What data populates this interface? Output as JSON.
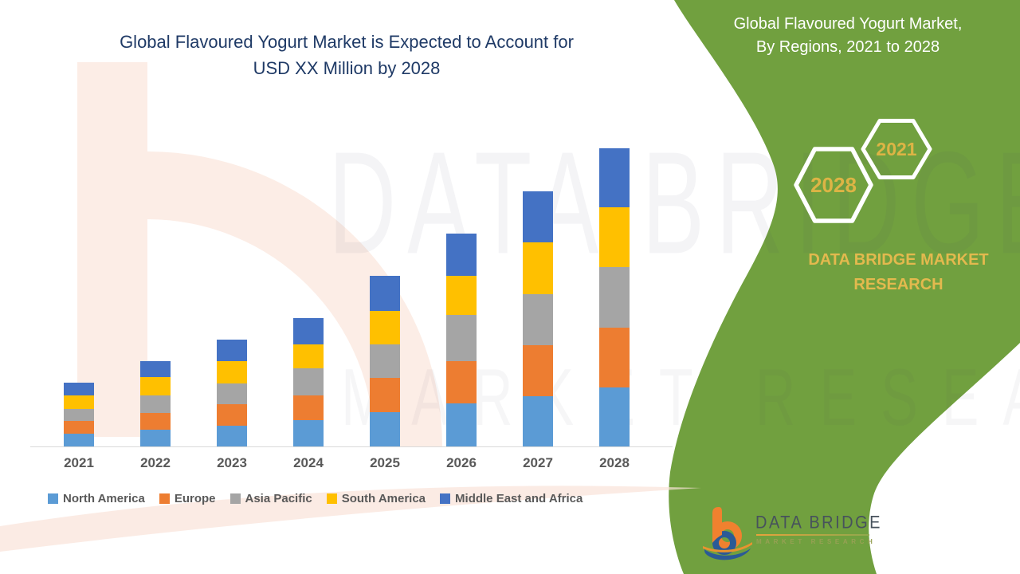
{
  "header": {
    "title_line1": "Global Flavoured Yogurt Market is Expected to Account for",
    "title_line2": "USD XX Million by 2028"
  },
  "right_panel": {
    "title_line1": "Global Flavoured Yogurt Market,",
    "title_line2": "By Regions, 2021 to 2028",
    "hexagons": [
      {
        "year": "2028"
      },
      {
        "year": "2021"
      }
    ],
    "brand_line1": "DATA BRIDGE MARKET",
    "brand_line2": "RESEARCH",
    "panel_green": "#71A03F",
    "accent_gold": "#DDB445"
  },
  "watermark": {
    "line1": "DATA BRIDGE",
    "line2": "MARKET RESEARCH"
  },
  "footer_logo": {
    "name_text": "DATA BRIDGE",
    "sub_text": "MARKET RESEARCH"
  },
  "chart_data": {
    "type": "bar",
    "stacked": true,
    "title": "Global Flavoured Yogurt Market is Expected to Account for USD XX Million by 2028",
    "xlabel": "",
    "ylabel": "",
    "value_unit": "relative height in px (no value axis shown; market sized as USD XX Million)",
    "grid": false,
    "legend_position": "bottom",
    "categories": [
      "2021",
      "2022",
      "2023",
      "2024",
      "2025",
      "2026",
      "2027",
      "2028"
    ],
    "series": [
      {
        "name": "North America",
        "color": "#5B9BD5",
        "values": [
          16,
          21,
          26,
          33,
          43,
          54,
          63,
          74
        ]
      },
      {
        "name": "Europe",
        "color": "#ED7D31",
        "values": [
          16,
          21,
          27,
          31,
          43,
          53,
          64,
          75
        ]
      },
      {
        "name": "Asia Pacific",
        "color": "#A5A5A5",
        "values": [
          15,
          22,
          26,
          34,
          42,
          58,
          64,
          76
        ]
      },
      {
        "name": "South America",
        "color": "#FFC000",
        "values": [
          17,
          23,
          28,
          30,
          42,
          49,
          65,
          75
        ]
      },
      {
        "name": "Middle East and Africa",
        "color": "#4472C4",
        "values": [
          16,
          20,
          27,
          33,
          44,
          53,
          64,
          74
        ]
      }
    ],
    "totals_by_year": [
      80,
      107,
      134,
      161,
      214,
      267,
      320,
      374
    ]
  }
}
